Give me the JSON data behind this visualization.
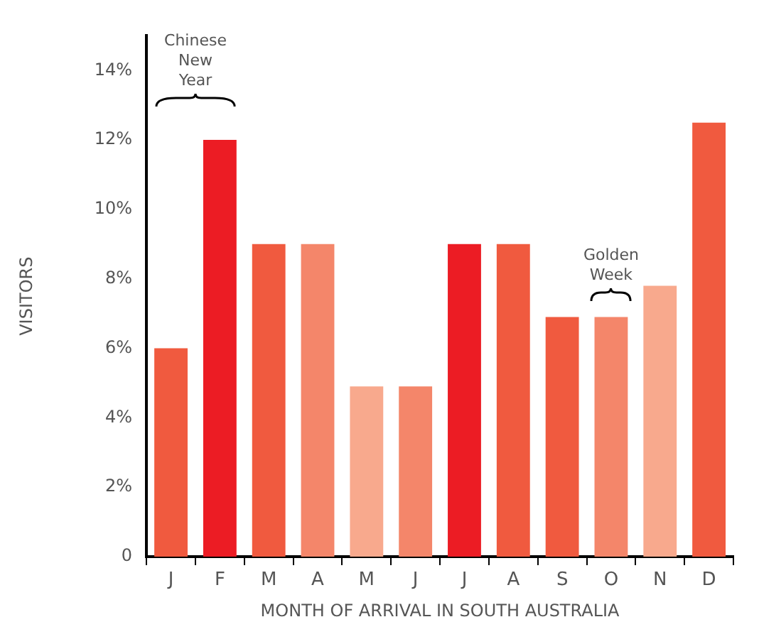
{
  "chart_data": {
    "type": "bar",
    "xlabel": "MONTH OF ARRIVAL IN SOUTH AUSTRALIA",
    "ylabel": "VISITORS",
    "categories": [
      "J",
      "F",
      "M",
      "A",
      "M",
      "J",
      "J",
      "A",
      "S",
      "O",
      "N",
      "D"
    ],
    "values": [
      6.0,
      12.0,
      9.0,
      9.0,
      4.9,
      4.9,
      9.0,
      9.0,
      6.9,
      6.9,
      7.8,
      12.5
    ],
    "colors": [
      "#f05a3f",
      "#ec1c24",
      "#f05a3f",
      "#f4866a",
      "#f8a98d",
      "#f4866a",
      "#ec1c24",
      "#f05a3f",
      "#f05a3f",
      "#f4866a",
      "#f8a98d",
      "#f05a3f"
    ],
    "ylim": [
      0,
      15
    ],
    "yticks": [
      0,
      {
        "value": 2,
        "label": "2%"
      },
      {
        "value": 4,
        "label": "4%"
      },
      {
        "value": 6,
        "label": "6%"
      },
      {
        "value": 8,
        "label": "8%"
      },
      {
        "value": 10,
        "label": "10%"
      },
      {
        "value": 12,
        "label": "12%"
      },
      {
        "value": 14,
        "label": "14%"
      }
    ],
    "annotations": [
      "Chinese New Year",
      "Golden Week"
    ],
    "grid": false,
    "legend": false
  }
}
